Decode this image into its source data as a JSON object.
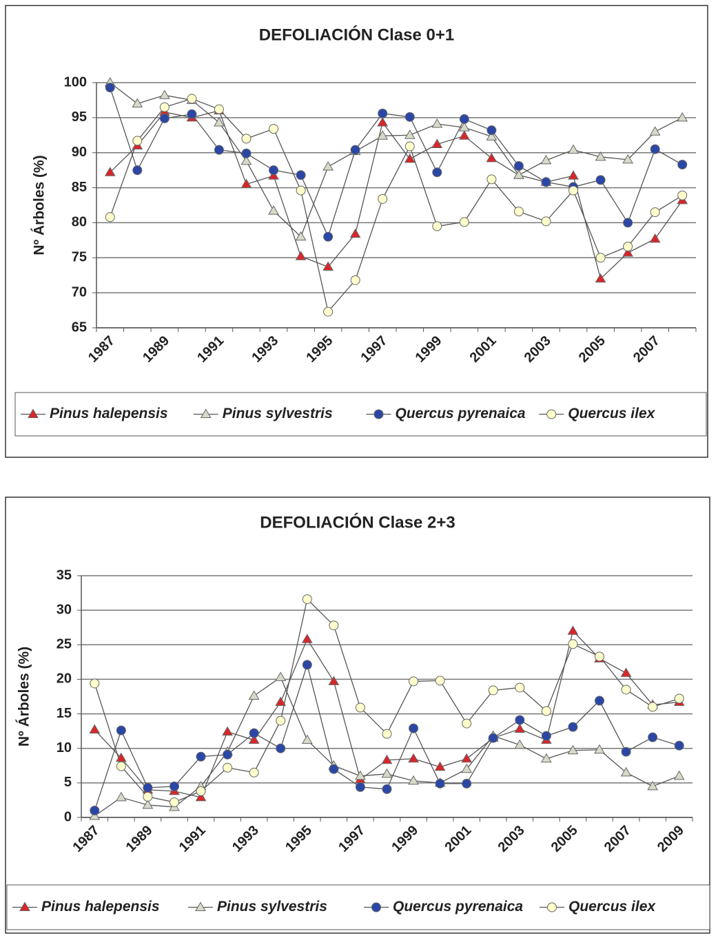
{
  "chart_data": [
    {
      "type": "line",
      "title": "DEFOLIACIÓN Clase 0+1",
      "y_label": "Nº Árboles (%)",
      "categories": [
        "1987",
        null,
        "1989",
        null,
        "1991",
        null,
        "1993",
        null,
        "1995",
        null,
        "1997",
        null,
        "1999",
        null,
        "2001",
        null,
        "2003",
        null,
        "2005",
        null,
        "2007",
        null
      ],
      "ylim": [
        65,
        100
      ],
      "yticks": [
        65,
        70,
        75,
        80,
        85,
        90,
        95,
        100
      ],
      "grid": true,
      "series": [
        {
          "name": "Pinus halepensis",
          "color": "#d9262a",
          "marker": "triangle",
          "values": [
            87.2,
            91.0,
            95.8,
            95.0,
            96.0,
            85.5,
            86.7,
            75.2,
            73.7,
            78.4,
            94.3,
            89.1,
            91.2,
            92.4,
            89.2,
            86.8,
            85.8,
            86.7,
            72.0,
            75.7,
            77.7,
            83.2
          ]
        },
        {
          "name": "Pinus sylvestris",
          "color": "#d6dbc9",
          "marker": "triangle",
          "values": [
            100,
            97.0,
            98.2,
            97.5,
            94.3,
            88.8,
            81.7,
            78.0,
            88.0,
            90.2,
            92.4,
            92.5,
            94.1,
            93.6,
            92.3,
            86.8,
            88.9,
            90.4,
            89.4,
            89.0,
            93.0,
            95.0
          ]
        },
        {
          "name": "Quercus pyrenaica",
          "color": "#2b47a6",
          "marker": "circle",
          "values": [
            99.3,
            87.5,
            94.9,
            95.5,
            90.4,
            89.9,
            87.5,
            86.8,
            78.0,
            90.4,
            95.6,
            95.1,
            87.2,
            94.8,
            93.2,
            88.1,
            85.8,
            85.1,
            86.1,
            80.0,
            90.5,
            88.3
          ]
        },
        {
          "name": "Quercus ilex",
          "color": "#ffffcc",
          "marker": "circle",
          "values": [
            80.8,
            91.7,
            96.5,
            97.7,
            96.2,
            92.0,
            93.4,
            84.6,
            67.3,
            71.8,
            83.4,
            90.9,
            79.5,
            80.1,
            86.2,
            81.6,
            80.2,
            84.6,
            75.0,
            76.6,
            81.5,
            83.9
          ]
        }
      ]
    },
    {
      "type": "line",
      "title": "DEFOLIACIÓN Clase 2+3",
      "y_label": "Nº Árboles (%)",
      "categories": [
        "1987",
        null,
        "1989",
        null,
        "1991",
        null,
        "1993",
        null,
        "1995",
        null,
        "1997",
        null,
        "1999",
        null,
        "2001",
        null,
        "2003",
        null,
        "2005",
        null,
        "2007",
        null,
        "2009"
      ],
      "ylim": [
        0,
        35
      ],
      "yticks": [
        0,
        5,
        10,
        15,
        20,
        25,
        30,
        35
      ],
      "grid": true,
      "series": [
        {
          "name": "Pinus halepensis",
          "color": "#d9262a",
          "marker": "triangle",
          "values": [
            12.7,
            8.6,
            4.0,
            3.8,
            2.9,
            12.4,
            11.2,
            16.7,
            25.8,
            19.7,
            5.5,
            8.3,
            8.5,
            7.3,
            8.5,
            11.5,
            12.8,
            11.2,
            27.0,
            23.0,
            20.9,
            16.3,
            16.7
          ]
        },
        {
          "name": "Pinus sylvestris",
          "color": "#d6dbc9",
          "marker": "triangle",
          "values": [
            0.2,
            2.9,
            1.8,
            1.5,
            4.5,
            9.5,
            17.6,
            20.3,
            11.2,
            7.5,
            6.0,
            6.3,
            5.3,
            5.0,
            7.0,
            11.8,
            10.5,
            8.5,
            9.7,
            9.8,
            6.5,
            4.5,
            6.0
          ]
        },
        {
          "name": "Quercus pyrenaica",
          "color": "#2b47a6",
          "marker": "circle",
          "values": [
            1.0,
            12.6,
            4.3,
            4.5,
            8.8,
            9.1,
            12.2,
            10.0,
            22.1,
            7.0,
            4.4,
            4.1,
            12.9,
            4.9,
            4.9,
            11.5,
            14.1,
            11.8,
            13.1,
            16.9,
            9.5,
            11.6,
            10.4
          ]
        },
        {
          "name": "Quercus ilex",
          "color": "#ffffcc",
          "marker": "circle",
          "values": [
            19.4,
            7.4,
            3.0,
            2.2,
            3.8,
            7.2,
            6.5,
            14.0,
            31.6,
            27.8,
            15.9,
            12.1,
            19.7,
            19.8,
            13.6,
            18.4,
            18.8,
            15.4,
            25.1,
            23.3,
            18.5,
            16.0,
            17.2
          ]
        }
      ]
    }
  ]
}
